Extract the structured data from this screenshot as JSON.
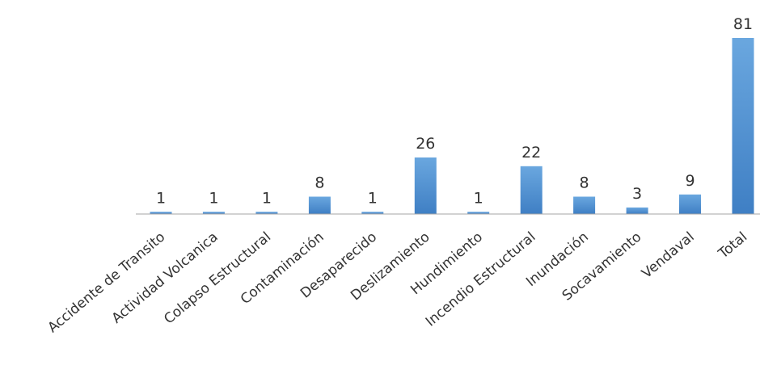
{
  "chart_data": {
    "type": "bar",
    "categories": [
      "Accidente de Transito",
      "Actividad Volcanica",
      "Colapso Estructural",
      "Contaminación",
      "Desaparecido",
      "Deslizamiento",
      "Hundimiento",
      "Incendio Estructural",
      "Inundación",
      "Socavamiento",
      "Vendaval",
      "Total"
    ],
    "values": [
      1,
      1,
      1,
      8,
      1,
      26,
      1,
      22,
      8,
      3,
      9,
      81
    ],
    "ylim": [
      0,
      81
    ],
    "grid": false,
    "legend": "none",
    "colors": {
      "bar_top": "#6aa7df",
      "bar_bottom": "#3f7fc4",
      "axis": "#a6a6a6",
      "text": "#333333"
    }
  }
}
